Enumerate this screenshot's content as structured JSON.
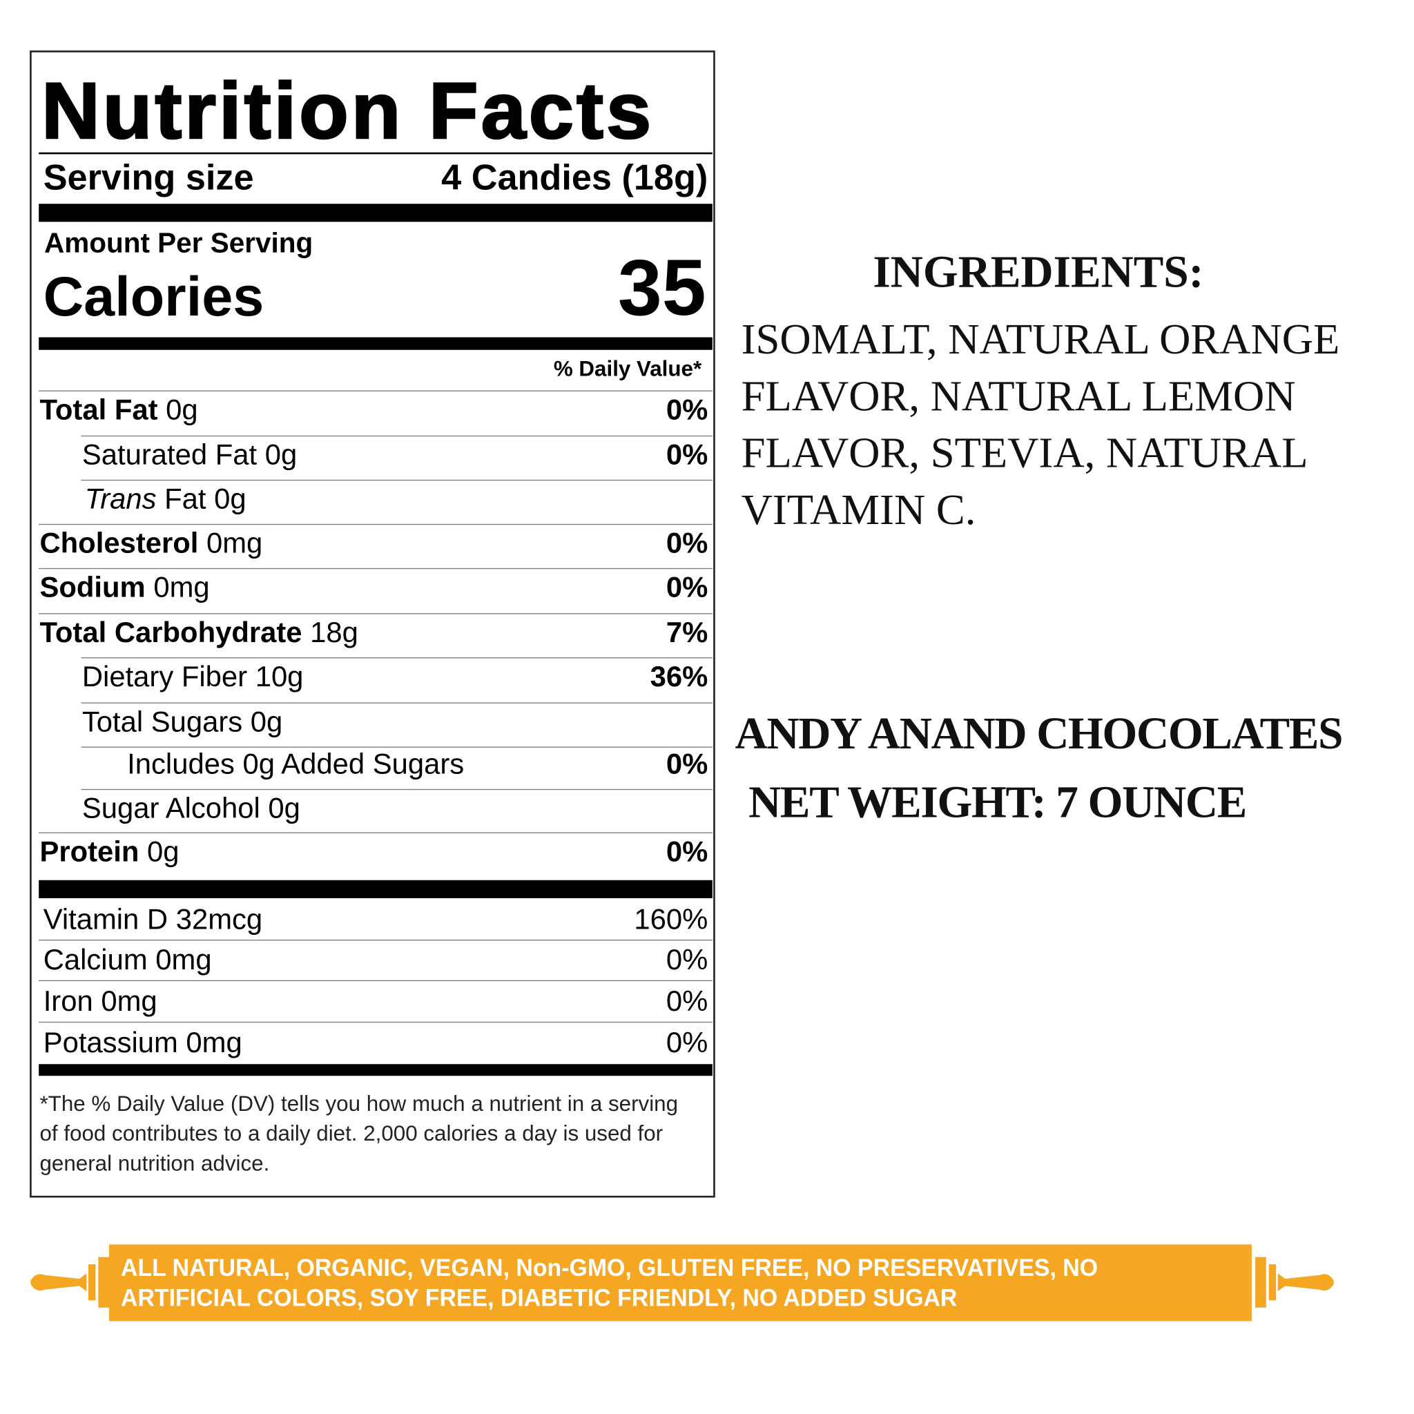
{
  "nutrition": {
    "title": "Nutrition Facts",
    "serving_size_label": "Serving size",
    "serving_size_value": "4 Candies (18g)",
    "amount_per_serving": "Amount Per Serving",
    "calories_label": "Calories",
    "calories_value": "35",
    "daily_value_header": "% Daily Value*",
    "rows": [
      {
        "name": "Total Fat",
        "amount": "0g",
        "dv": "0%"
      },
      {
        "name": "Saturated Fat",
        "amount": "0g",
        "dv": "0%"
      },
      {
        "name": "Trans",
        "name_suffix": "Fat",
        "amount": "0g",
        "dv": ""
      },
      {
        "name": "Cholesterol",
        "amount": "0mg",
        "dv": "0%"
      },
      {
        "name": "Sodium",
        "amount": "0mg",
        "dv": "0%"
      },
      {
        "name": "Total Carbohydrate",
        "amount": "18g",
        "dv": "7%"
      },
      {
        "name": "Dietary Fiber",
        "amount": "10g",
        "dv": "36%"
      },
      {
        "name": "Total Sugars",
        "amount": "0g",
        "dv": ""
      },
      {
        "name": "Includes 0g Added Sugars",
        "amount": "",
        "dv": "0%"
      },
      {
        "name": "Sugar Alcohol",
        "amount": "0g",
        "dv": ""
      },
      {
        "name": "Protein",
        "amount": "0g",
        "dv": "0%"
      }
    ],
    "vitamins": [
      {
        "label": "Vitamin D 32mcg",
        "dv": "160%"
      },
      {
        "label": "Calcium 0mg",
        "dv": "0%"
      },
      {
        "label": "Iron 0mg",
        "dv": "0%"
      },
      {
        "label": "Potassium 0mg",
        "dv": "0%"
      }
    ],
    "footnote": "*The % Daily Value (DV) tells you how much a nutrient in a serving of food contributes to a daily diet. 2,000 calories a day is used for general nutrition advice."
  },
  "ingredients": {
    "title": "INGREDIENTS:",
    "lines": [
      "ISOMALT, NATURAL ORANGE",
      "FLAVOR, NATURAL LEMON",
      "FLAVOR, STEVIA, NATURAL",
      "VITAMIN C."
    ]
  },
  "brand": "ANDY ANAND CHOCOLATES",
  "net_weight": "NET WEIGHT: 7 OUNCE",
  "banner": {
    "line1": "ALL NATURAL, ORGANIC, VEGAN, Non-GMO, GLUTEN FREE, NO PRESERVATIVES, NO",
    "line2": "ARTIFICIAL COLORS, SOY FREE, DIABETIC FRIENDLY, NO ADDED SUGAR",
    "color": "#F5A623"
  }
}
